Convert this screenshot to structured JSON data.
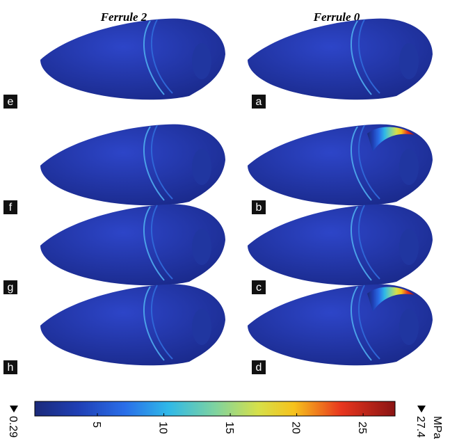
{
  "columns": [
    "Ferrule 2",
    "Ferrule 0"
  ],
  "panels": [
    [
      "e",
      "a"
    ],
    [
      "f",
      "b"
    ],
    [
      "g",
      "c"
    ],
    [
      "h",
      "d"
    ]
  ],
  "colorbar": {
    "min": 0.29,
    "max": 27.4,
    "ticks": [
      5,
      10,
      15,
      20,
      25
    ],
    "unit": "MPa"
  }
}
